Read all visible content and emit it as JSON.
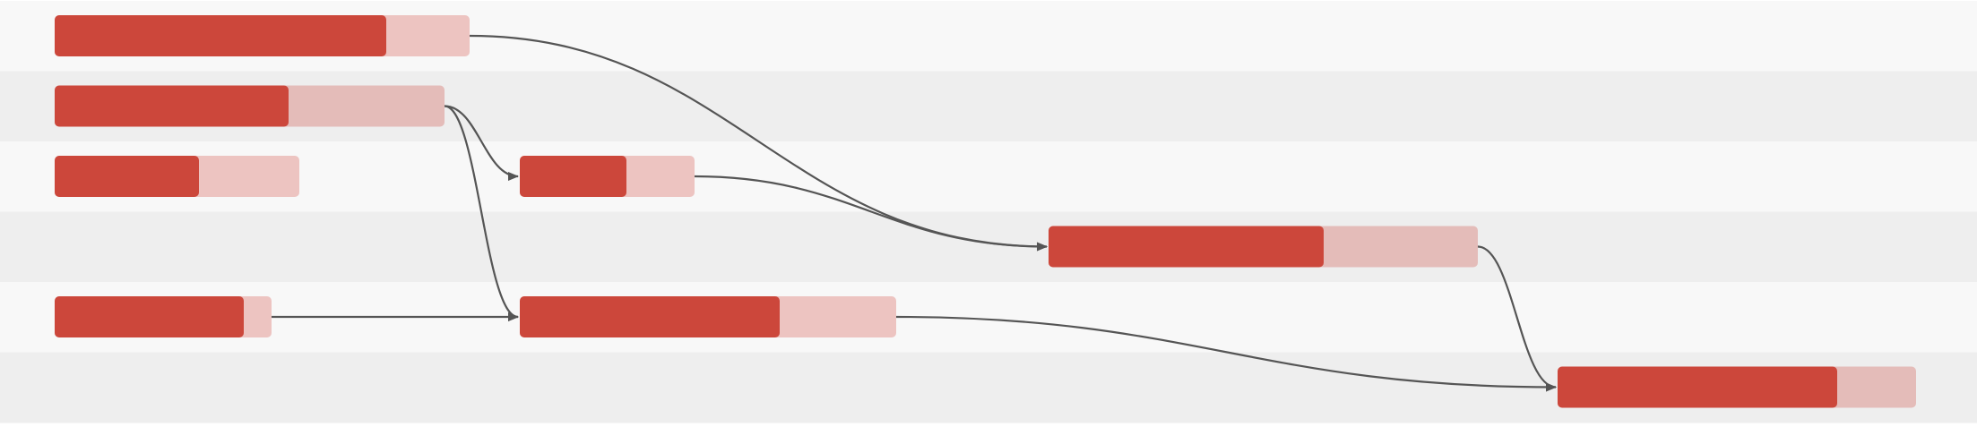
{
  "diagram": {
    "type": "gantt-dependency",
    "colors": {
      "lane_light": "#f8f8f8",
      "lane_dark": "#eeeeee",
      "bar_progress": "#cc473b",
      "bar_track_light": "#edc4c1",
      "bar_track_dark": "#e4bcb9",
      "arrow": "#555555"
    },
    "tasks": [
      {
        "id": "t1",
        "row": 0,
        "progress": 0.8
      },
      {
        "id": "t2",
        "row": 1,
        "progress": 0.6
      },
      {
        "id": "t3",
        "row": 2,
        "progress": 0.59
      },
      {
        "id": "t4",
        "row": 4,
        "progress": 0.87
      },
      {
        "id": "t5",
        "row": 2,
        "progress": 0.61
      },
      {
        "id": "t6",
        "row": 4,
        "progress": 0.69
      },
      {
        "id": "t7",
        "row": 3,
        "progress": 0.64
      },
      {
        "id": "t8",
        "row": 5,
        "progress": 0.78
      }
    ],
    "dependencies": [
      {
        "from": "t1",
        "to": "t7"
      },
      {
        "from": "t2",
        "to": "t5"
      },
      {
        "from": "t2",
        "to": "t6"
      },
      {
        "from": "t4",
        "to": "t6"
      },
      {
        "from": "t5",
        "to": "t7"
      },
      {
        "from": "t7",
        "to": "t8"
      },
      {
        "from": "t6",
        "to": "t8"
      }
    ]
  }
}
